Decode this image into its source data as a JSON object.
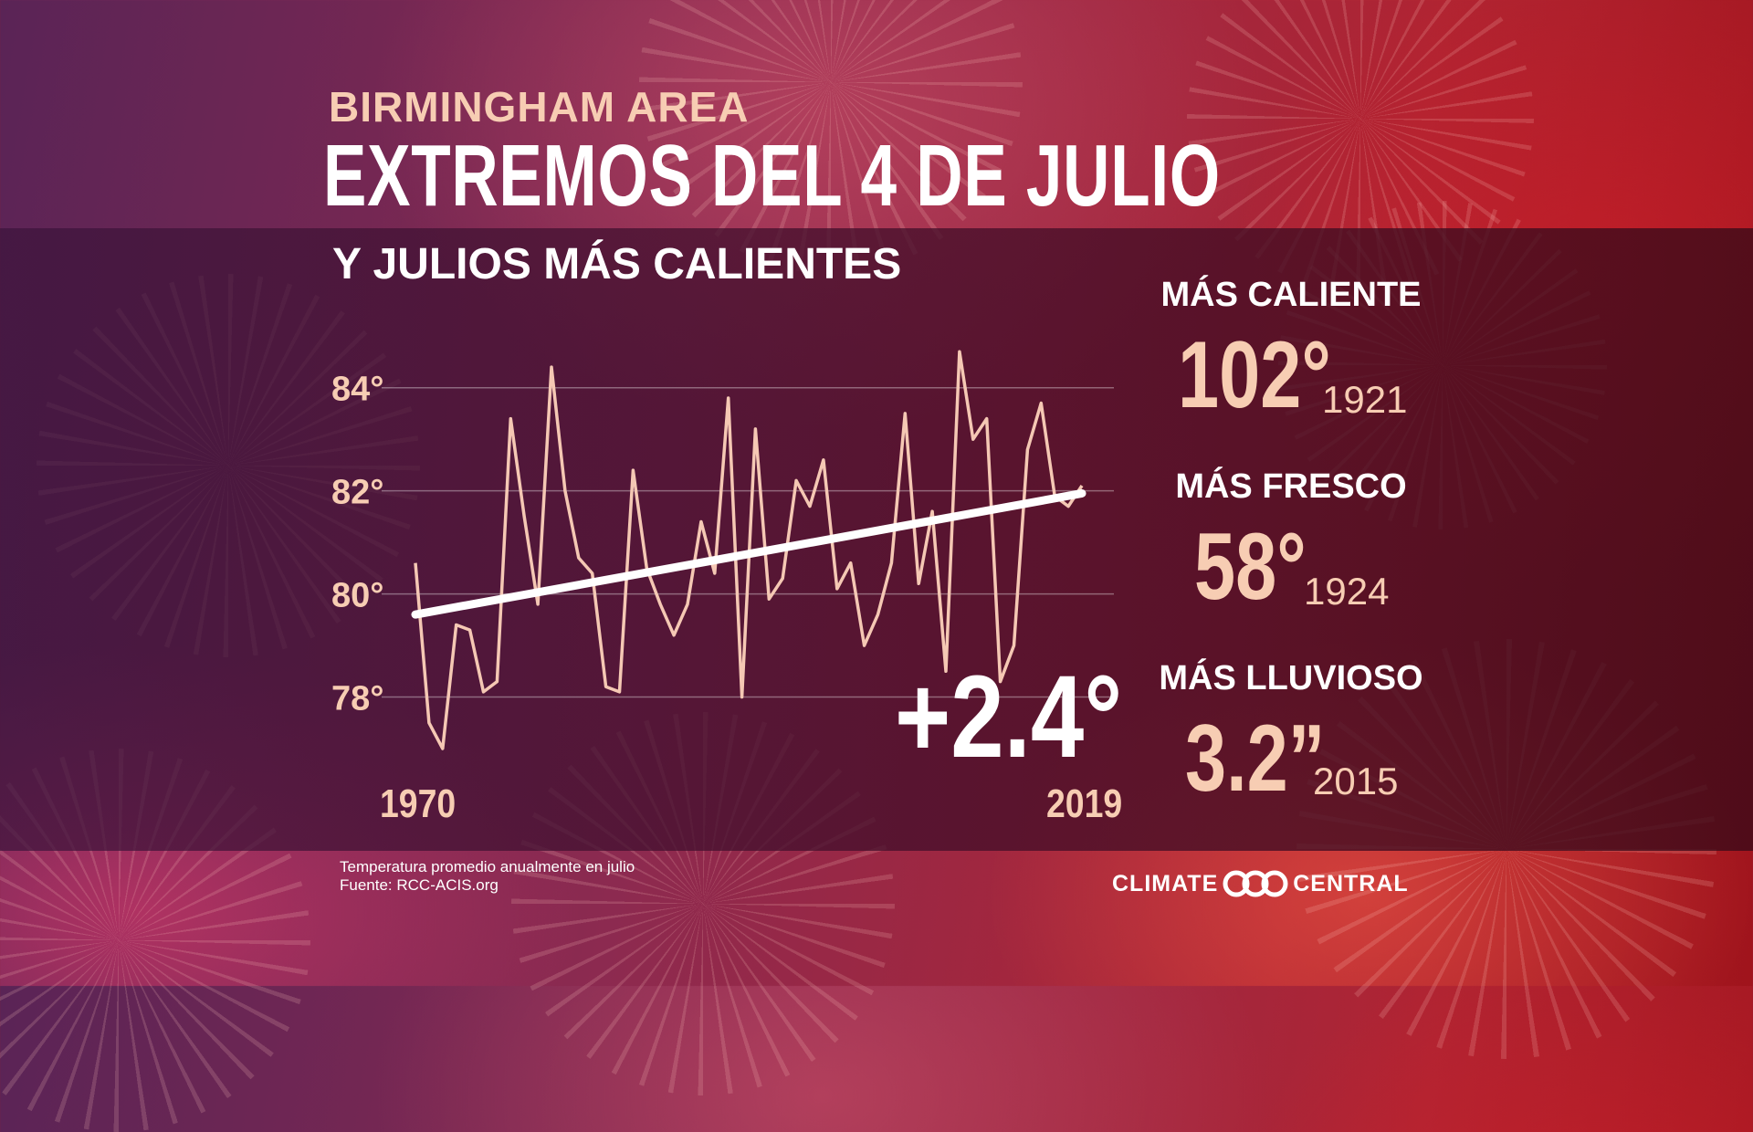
{
  "header": {
    "kicker": "BIRMINGHAM AREA",
    "title": "EXTREMOS DEL 4 DE JULIO",
    "subtitle": "Y JULIOS MÁS CALIENTES"
  },
  "stats": [
    {
      "label": "MÁS CALIENTE",
      "value": "102°",
      "year": "1921"
    },
    {
      "label": "MÁS FRESCO",
      "value": "58°",
      "year": "1924"
    },
    {
      "label": "MÁS LLUVIOSO",
      "value": "3.2”",
      "year": "2015"
    }
  ],
  "change_label": "+2.4°",
  "footer": {
    "note": "Temperatura promedio anualmente en julio",
    "source": "Fuente: RCC-ACIS.org"
  },
  "logo": {
    "left": "CLIMATE",
    "right": "CENTRAL"
  },
  "colors": {
    "accent": "#f7cdb3",
    "line": "#f5c8b4",
    "trend": "#ffffff"
  },
  "chart_data": {
    "type": "line",
    "x_range": [
      1970,
      2019
    ],
    "x_tick_labels": [
      "1970",
      "2019"
    ],
    "ylim": [
      77,
      85.5
    ],
    "y_ticks": [
      78,
      80,
      82,
      84
    ],
    "y_tick_labels": [
      "78°",
      "80°",
      "82°",
      "84°"
    ],
    "grid": true,
    "series": [
      {
        "x": [
          1970,
          1971,
          1972,
          1973,
          1974,
          1975,
          1976,
          1977,
          1978,
          1979,
          1980,
          1981,
          1982,
          1983,
          1984,
          1985,
          1986,
          1987,
          1988,
          1989,
          1990,
          1991,
          1992,
          1993,
          1994,
          1995,
          1996,
          1997,
          1998,
          1999,
          2000,
          2001,
          2002,
          2003,
          2004,
          2005,
          2006,
          2007,
          2008,
          2009,
          2010,
          2011,
          2012,
          2013,
          2014,
          2015,
          2016,
          2017,
          2018,
          2019
        ],
        "values": [
          80.6,
          77.5,
          77.0,
          79.4,
          79.3,
          78.1,
          78.3,
          83.4,
          81.5,
          79.8,
          84.4,
          82.0,
          80.7,
          80.4,
          78.2,
          78.1,
          82.4,
          80.5,
          79.8,
          79.2,
          79.8,
          81.4,
          80.4,
          83.8,
          78.0,
          83.2,
          79.9,
          80.3,
          82.2,
          81.7,
          82.6,
          80.1,
          80.6,
          79.0,
          79.6,
          80.6,
          83.5,
          80.2,
          81.6,
          78.5,
          84.7,
          83.0,
          83.4,
          78.3,
          79.0,
          82.8,
          83.7,
          81.9,
          81.7,
          82.1
        ]
      }
    ],
    "trend": {
      "start": 79.6,
      "end": 81.95
    }
  }
}
